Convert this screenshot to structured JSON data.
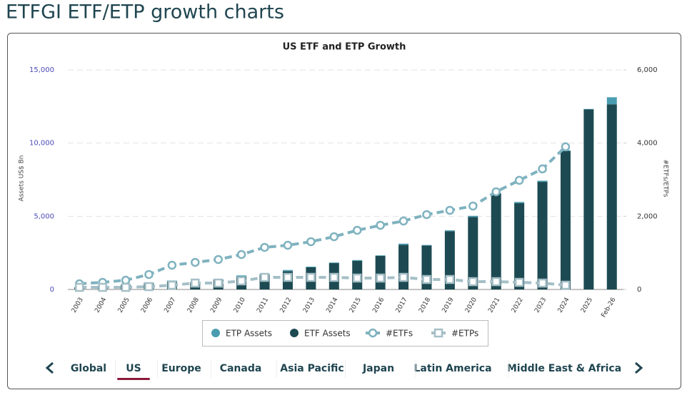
{
  "page_title": "ETFGI ETF/ETP growth charts",
  "tabs": [
    "Global",
    "US",
    "Europe",
    "Canada",
    "Asia Pacific",
    "Japan",
    "Latin America",
    "Middle East & Africa"
  ],
  "active_tab": 1,
  "chart_data": {
    "type": "bar",
    "title": "US ETF and ETP Growth",
    "y_label": "Assets US$ Bn",
    "y2_label": "#ETFs/ETPs",
    "categories": [
      "2003",
      "2004",
      "2005",
      "2006",
      "2007",
      "2008",
      "2009",
      "2010",
      "2011",
      "2012",
      "2013",
      "2014",
      "2015",
      "2016",
      "2017",
      "2018",
      "2019",
      "2020",
      "2021",
      "2022",
      "2023",
      "2024",
      "2025",
      "Feb-26"
    ],
    "ylim": [
      0,
      15000
    ],
    "yticks": [
      0,
      {
        "value": 5000,
        "label": "5,000"
      },
      {
        "value": 10000,
        "label": "10,000"
      },
      {
        "value": 15000,
        "label": "15,000"
      }
    ],
    "y2lim": [
      0,
      6000
    ],
    "y2ticks": [
      0,
      {
        "value": 2000,
        "label": "2,000"
      },
      {
        "value": 4000,
        "label": "4,000"
      },
      {
        "value": 6000,
        "label": "6,000"
      }
    ],
    "grid": true,
    "stacked": true,
    "series": [
      {
        "name": "ETP Assets",
        "color": "#4a9db0",
        "kind": "bar",
        "marker": "circle",
        "values": [
          20,
          30,
          40,
          50,
          60,
          40,
          60,
          80,
          70,
          80,
          50,
          40,
          60,
          40,
          80,
          40,
          60,
          80,
          40,
          80,
          80,
          60,
          30,
          480
        ]
      },
      {
        "name": "ETF Assets",
        "color": "#1d4a52",
        "kind": "bar",
        "marker": "circle",
        "values": [
          150,
          220,
          300,
          420,
          550,
          480,
          650,
          880,
          1000,
          1250,
          1510,
          1800,
          1950,
          2290,
          3050,
          3000,
          3980,
          4950,
          6550,
          5900,
          7350,
          9450,
          12300,
          12650
        ]
      },
      {
        "name": "#ETFs",
        "color": "#7fb2bf",
        "kind": "line",
        "marker": "circle",
        "axis": "y2",
        "values": [
          155,
          195,
          253,
          410,
          663,
          740,
          819,
          955,
          1150,
          1208,
          1306,
          1442,
          1617,
          1754,
          1871,
          2046,
          2163,
          2280,
          2670,
          2982,
          3294,
          3898,
          null,
          null
        ]
      },
      {
        "name": "#ETPs",
        "color": "#a5bfc7",
        "kind": "line",
        "marker": "square",
        "axis": "y2",
        "values": [
          58,
          58,
          58,
          78,
          117,
          175,
          175,
          234,
          331,
          331,
          331,
          331,
          312,
          312,
          331,
          273,
          273,
          214,
          214,
          195,
          175,
          117,
          null,
          null
        ]
      }
    ]
  }
}
